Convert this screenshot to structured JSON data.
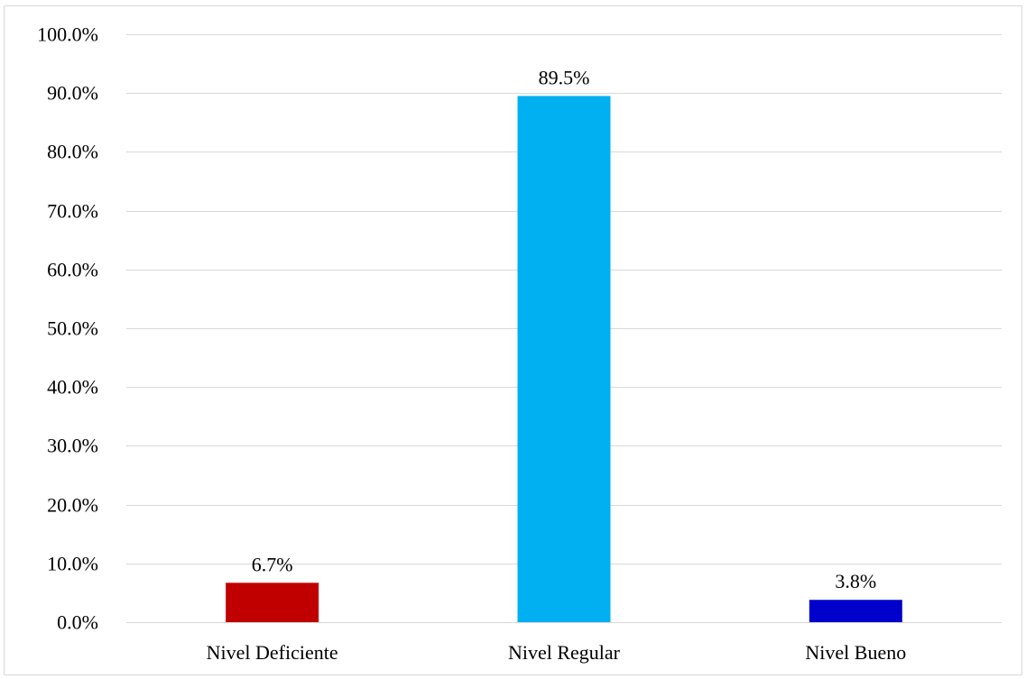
{
  "chart_data": {
    "type": "bar",
    "title": "",
    "xlabel": "",
    "ylabel": "",
    "categories": [
      "Nivel Deficiente",
      "Nivel Regular",
      "Nivel Bueno"
    ],
    "values": [
      6.7,
      89.5,
      3.8
    ],
    "value_labels": [
      "6.7%",
      "89.5%",
      "3.8%"
    ],
    "colors": [
      "#C00000",
      "#00B0F0",
      "#0000CC"
    ],
    "ylim": [
      0,
      100
    ],
    "yticks": [
      0,
      10,
      20,
      30,
      40,
      50,
      60,
      70,
      80,
      90,
      100
    ],
    "ytick_labels": [
      "0.0%",
      "10.0%",
      "20.0%",
      "30.0%",
      "40.0%",
      "50.0%",
      "60.0%",
      "70.0%",
      "80.0%",
      "90.0%",
      "100.0%"
    ],
    "grid": true,
    "gridline_color": "#d9d9d9",
    "legend": "none"
  }
}
